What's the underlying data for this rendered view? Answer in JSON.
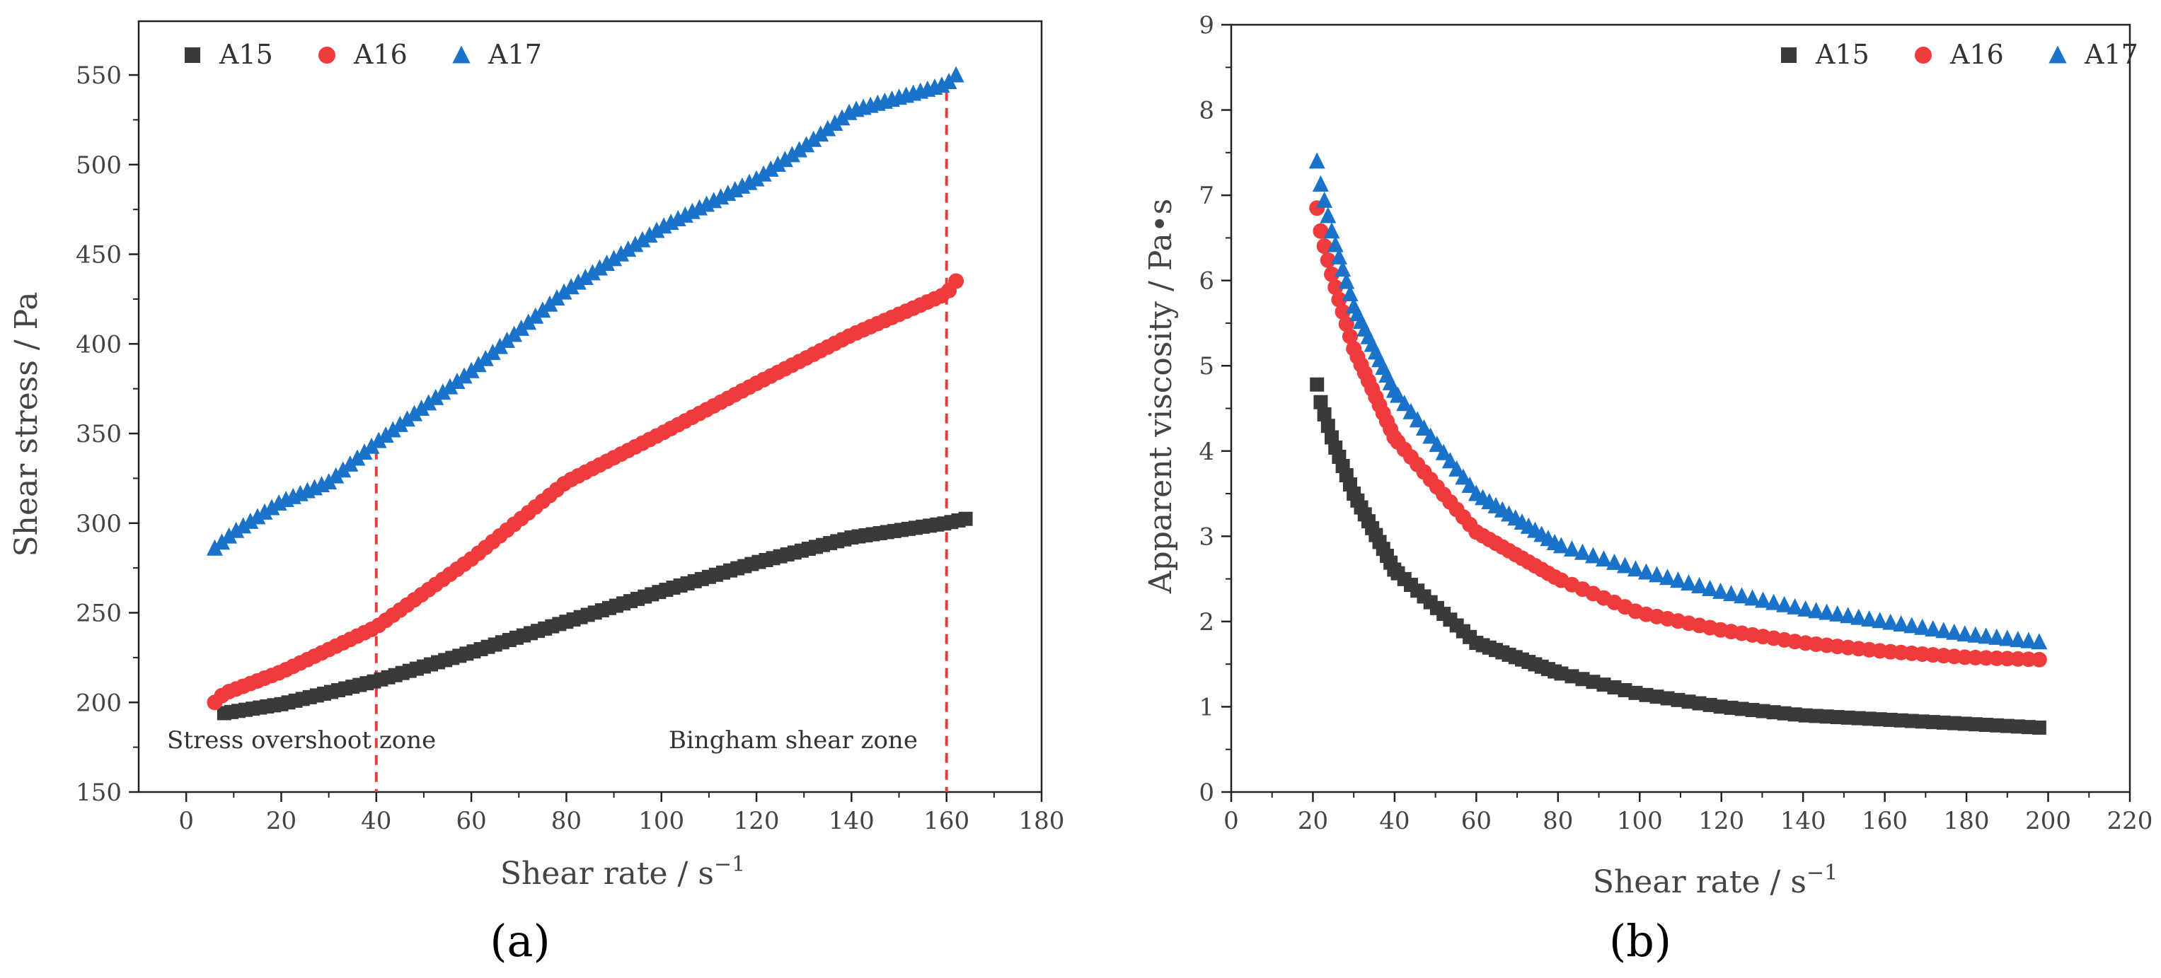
{
  "chart_data": [
    {
      "id": "a",
      "type": "scatter",
      "caption": "(a)",
      "xlabel": "Shear rate / s",
      "xlabel_sup": "−1",
      "ylabel": "Shear stress / Pa",
      "xlim": [
        -10,
        180
      ],
      "ylim": [
        150,
        580
      ],
      "xticks": [
        0,
        20,
        40,
        60,
        80,
        100,
        120,
        140,
        160,
        180
      ],
      "yticks": [
        150,
        200,
        250,
        300,
        350,
        400,
        450,
        500,
        550
      ],
      "legend_position": "top-left",
      "annotations": {
        "left_zone": "Stress overshoot zone",
        "right_zone": "Bingham shear zone",
        "vlines_x": [
          40,
          160
        ]
      },
      "series": [
        {
          "name": "A15",
          "color": "#3a3a3a",
          "marker": "square",
          "points": [
            [
              8,
              194
            ],
            [
              20,
              199
            ],
            [
              40,
              212
            ],
            [
              60,
              228
            ],
            [
              80,
              245
            ],
            [
              100,
              262
            ],
            [
              120,
              278
            ],
            [
              140,
              292
            ],
            [
              160,
              300
            ],
            [
              165,
              303
            ]
          ]
        },
        {
          "name": "A16",
          "color": "#ef3b3b",
          "marker": "circle",
          "points": [
            [
              6,
              200
            ],
            [
              8,
              205
            ],
            [
              20,
              217
            ],
            [
              40,
              242
            ],
            [
              60,
              280
            ],
            [
              80,
              323
            ],
            [
              100,
              350
            ],
            [
              120,
              378
            ],
            [
              140,
              405
            ],
            [
              160,
              428
            ],
            [
              162,
              435
            ]
          ]
        },
        {
          "name": "A17",
          "color": "#1a73c8",
          "marker": "triangle",
          "points": [
            [
              6,
              286
            ],
            [
              10,
              295
            ],
            [
              20,
              312
            ],
            [
              30,
              323
            ],
            [
              40,
              345
            ],
            [
              60,
              385
            ],
            [
              80,
              430
            ],
            [
              100,
              465
            ],
            [
              120,
              492
            ],
            [
              130,
              510
            ],
            [
              140,
              530
            ],
            [
              160,
              545
            ],
            [
              162,
              550
            ]
          ]
        }
      ]
    },
    {
      "id": "b",
      "type": "scatter",
      "caption": "(b)",
      "xlabel": "Shear rate / s",
      "xlabel_sup": "−1",
      "ylabel": "Apparent viscosity / Pa•s",
      "xlim": [
        0,
        220
      ],
      "ylim": [
        0,
        9
      ],
      "xticks": [
        0,
        20,
        40,
        60,
        80,
        100,
        120,
        140,
        160,
        180,
        200,
        220
      ],
      "yticks": [
        0,
        1,
        2,
        3,
        4,
        5,
        6,
        7,
        8,
        9
      ],
      "legend_position": "top-right",
      "series": [
        {
          "name": "A15",
          "color": "#3a3a3a",
          "marker": "square",
          "points": [
            [
              21,
              4.78
            ],
            [
              22,
              4.55
            ],
            [
              25,
              4.1
            ],
            [
              30,
              3.5
            ],
            [
              40,
              2.6
            ],
            [
              60,
              1.75
            ],
            [
              80,
              1.4
            ],
            [
              100,
              1.15
            ],
            [
              120,
              1.0
            ],
            [
              140,
              0.9
            ],
            [
              160,
              0.85
            ],
            [
              180,
              0.8
            ],
            [
              200,
              0.75
            ]
          ]
        },
        {
          "name": "A16",
          "color": "#ef3b3b",
          "marker": "circle",
          "points": [
            [
              21,
              6.85
            ],
            [
              22,
              6.55
            ],
            [
              25,
              6.0
            ],
            [
              30,
              5.2
            ],
            [
              40,
              4.15
            ],
            [
              60,
              3.05
            ],
            [
              80,
              2.5
            ],
            [
              100,
              2.1
            ],
            [
              120,
              1.9
            ],
            [
              140,
              1.75
            ],
            [
              160,
              1.65
            ],
            [
              180,
              1.58
            ],
            [
              200,
              1.55
            ]
          ]
        },
        {
          "name": "A17",
          "color": "#1a73c8",
          "marker": "triangle",
          "points": [
            [
              21,
              7.4
            ],
            [
              22,
              7.1
            ],
            [
              25,
              6.5
            ],
            [
              30,
              5.7
            ],
            [
              40,
              4.7
            ],
            [
              60,
              3.5
            ],
            [
              80,
              2.9
            ],
            [
              100,
              2.6
            ],
            [
              120,
              2.35
            ],
            [
              140,
              2.15
            ],
            [
              160,
              2.0
            ],
            [
              180,
              1.85
            ],
            [
              200,
              1.75
            ]
          ]
        }
      ]
    }
  ]
}
